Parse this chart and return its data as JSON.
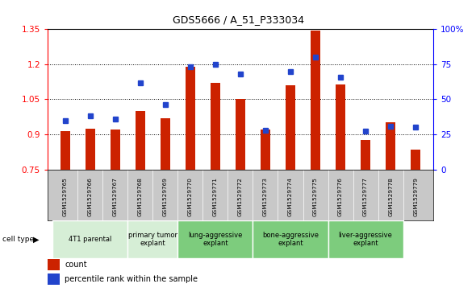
{
  "title": "GDS5666 / A_51_P333034",
  "samples": [
    "GSM1529765",
    "GSM1529766",
    "GSM1529767",
    "GSM1529768",
    "GSM1529769",
    "GSM1529770",
    "GSM1529771",
    "GSM1529772",
    "GSM1529773",
    "GSM1529774",
    "GSM1529775",
    "GSM1529776",
    "GSM1529777",
    "GSM1529778",
    "GSM1529779"
  ],
  "count_values": [
    0.915,
    0.925,
    0.92,
    1.0,
    0.97,
    1.19,
    1.12,
    1.05,
    0.92,
    1.11,
    1.345,
    1.115,
    0.875,
    0.95,
    0.835
  ],
  "percentile_values": [
    35,
    38,
    36,
    62,
    46,
    73,
    75,
    68,
    28,
    70,
    80,
    66,
    27,
    31,
    30
  ],
  "ylim_left": [
    0.75,
    1.35
  ],
  "ylim_right": [
    0,
    100
  ],
  "yticks_left": [
    0.75,
    0.9,
    1.05,
    1.2,
    1.35
  ],
  "yticks_right": [
    0,
    25,
    50,
    75,
    100
  ],
  "ytick_labels_left": [
    "0.75",
    "0.9",
    "1.05",
    "1.2",
    "1.35"
  ],
  "ytick_labels_right": [
    "0",
    "25",
    "50",
    "75",
    "100%"
  ],
  "hlines": [
    0.9,
    1.05,
    1.2
  ],
  "bar_color": "#CC2200",
  "dot_color": "#2244CC",
  "cell_types": [
    {
      "label": "4T1 parental",
      "cols": [
        0,
        1,
        2
      ],
      "color": "#d6eed6"
    },
    {
      "label": "primary tumor\nexplant",
      "cols": [
        3,
        4
      ],
      "color": "#d6eed6"
    },
    {
      "label": "lung-aggressive\nexplant",
      "cols": [
        5,
        6,
        7
      ],
      "color": "#7dcc7d"
    },
    {
      "label": "bone-aggressive\nexplant",
      "cols": [
        8,
        9,
        10
      ],
      "color": "#7dcc7d"
    },
    {
      "label": "liver-aggressive\nexplant",
      "cols": [
        11,
        12,
        13
      ],
      "color": "#7dcc7d"
    }
  ],
  "legend_count_label": "count",
  "legend_percentile_label": "percentile rank within the sample",
  "sample_area_color": "#c8c8c8",
  "plot_bg_color": "#ffffff"
}
